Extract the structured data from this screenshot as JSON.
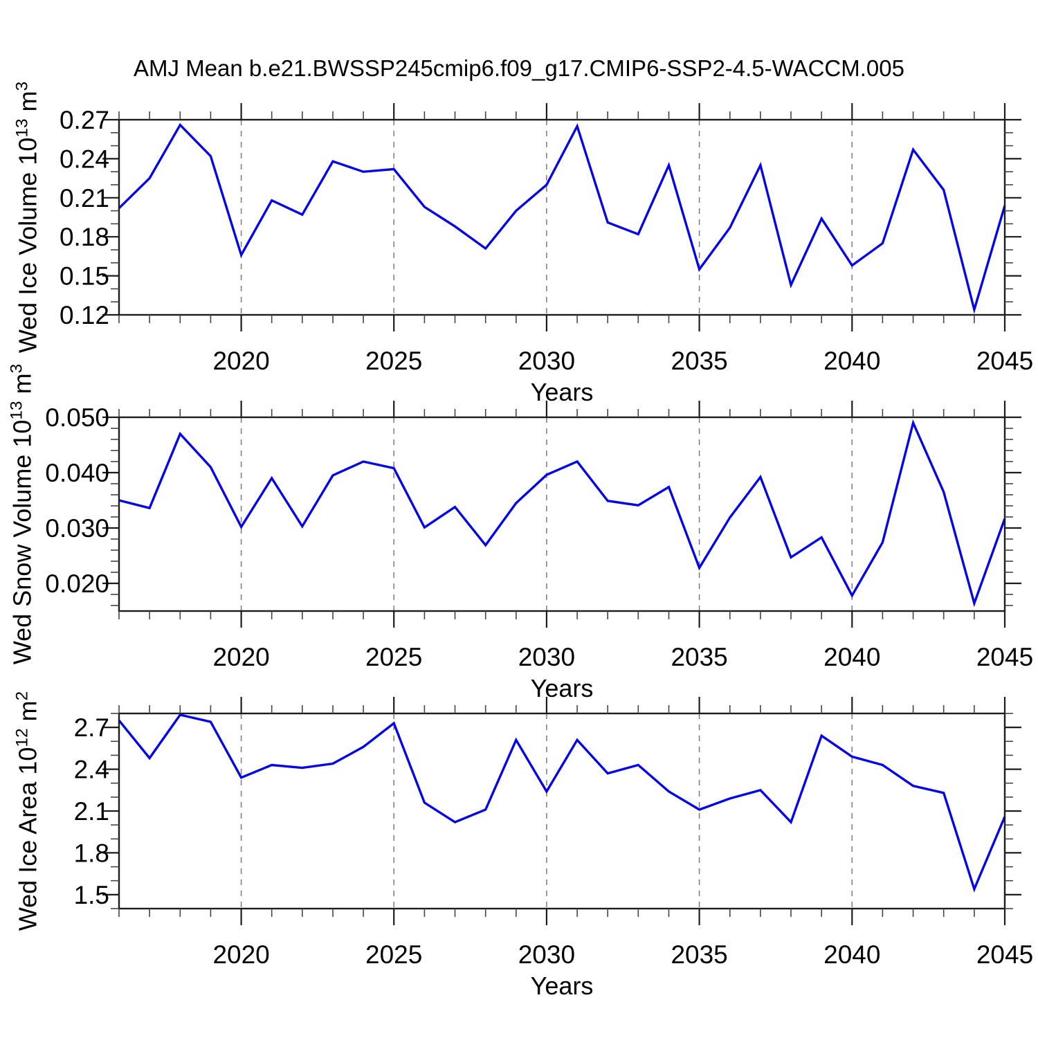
{
  "figure": {
    "title": "AMJ Mean b.e21.BWSSP245cmip6.f09_g17.CMIP6-SSP2-4.5-WACCM.005",
    "background": "#ffffff",
    "line_color": "#0404ec",
    "grid_color": "#7a7a7a",
    "axis_color": "#1c1c1c",
    "minor_tick_color": "#444444"
  },
  "chart_data": [
    {
      "type": "line",
      "series_name": "Wed Ice Volume",
      "ylabel": "Wed Ice Volume 10^13 m^3",
      "ylabel_parts": {
        "base": "Wed Ice Volume 10",
        "exp": "13",
        "unit": " m",
        "unit_exp": "3"
      },
      "xlabel": "Years",
      "x": [
        2016,
        2017,
        2018,
        2019,
        2020,
        2021,
        2022,
        2023,
        2024,
        2025,
        2026,
        2027,
        2028,
        2029,
        2030,
        2031,
        2032,
        2033,
        2034,
        2035,
        2036,
        2037,
        2038,
        2039,
        2040,
        2041,
        2042,
        2043,
        2044,
        2045
      ],
      "values": [
        0.202,
        0.225,
        0.266,
        0.242,
        0.166,
        0.208,
        0.197,
        0.238,
        0.23,
        0.232,
        0.203,
        0.188,
        0.171,
        0.2,
        0.22,
        0.265,
        0.191,
        0.182,
        0.235,
        0.155,
        0.187,
        0.235,
        0.143,
        0.194,
        0.158,
        0.175,
        0.247,
        0.216,
        0.124,
        0.204
      ],
      "xlim": [
        2016,
        2045
      ],
      "ylim": [
        0.12,
        0.27
      ],
      "xticks": {
        "major_values": [
          2020,
          2025,
          2030,
          2035,
          2040,
          2045
        ],
        "major_labels": [
          "2020",
          "2025",
          "2030",
          "2035",
          "2040",
          "2045"
        ],
        "minor_step": 1
      },
      "yticks": {
        "major_values": [
          0.27,
          0.24,
          0.21,
          0.18,
          0.15,
          0.12
        ],
        "major_labels": [
          "0.27",
          "0.24",
          "0.21",
          "0.18",
          "0.15",
          "0.12"
        ],
        "minor_step": 0.01
      },
      "gridlines_x": [
        2020,
        2025,
        2030,
        2035,
        2040
      ],
      "grid_style": "vertical-dashed",
      "legend": "none"
    },
    {
      "type": "line",
      "series_name": "Wed Snow Volume",
      "ylabel": "Wed Snow Volume 10^13 m^3",
      "ylabel_parts": {
        "base": "Wed Snow Volume 10",
        "exp": "13",
        "unit": " m",
        "unit_exp": "3"
      },
      "xlabel": "Years",
      "x": [
        2016,
        2017,
        2018,
        2019,
        2020,
        2021,
        2022,
        2023,
        2024,
        2025,
        2026,
        2027,
        2028,
        2029,
        2030,
        2031,
        2032,
        2033,
        2034,
        2035,
        2036,
        2037,
        2038,
        2039,
        2040,
        2041,
        2042,
        2043,
        2044,
        2045
      ],
      "values": [
        0.035,
        0.0336,
        0.047,
        0.041,
        0.0302,
        0.039,
        0.0303,
        0.0395,
        0.042,
        0.0408,
        0.0301,
        0.0338,
        0.0269,
        0.0345,
        0.0396,
        0.042,
        0.0349,
        0.0341,
        0.0374,
        0.0228,
        0.0319,
        0.0392,
        0.0247,
        0.0283,
        0.0178,
        0.0274,
        0.049,
        0.0365,
        0.0164,
        0.0317
      ],
      "xlim": [
        2016,
        2045
      ],
      "ylim": [
        0.015,
        0.05
      ],
      "xticks": {
        "major_values": [
          2020,
          2025,
          2030,
          2035,
          2040,
          2045
        ],
        "major_labels": [
          "2020",
          "2025",
          "2030",
          "2035",
          "2040",
          "2045"
        ],
        "minor_step": 1
      },
      "yticks": {
        "major_values": [
          0.05,
          0.04,
          0.03,
          0.02
        ],
        "major_labels": [
          "0.050",
          "0.040",
          "0.030",
          "0.020"
        ],
        "minor_step": 0.002
      },
      "gridlines_x": [
        2020,
        2025,
        2030,
        2035,
        2040
      ],
      "grid_style": "vertical-dashed",
      "legend": "none"
    },
    {
      "type": "line",
      "series_name": "Wed Ice Area",
      "ylabel": "Wed Ice Area 10^12 m^2",
      "ylabel_parts": {
        "base": "Wed Ice Area 10",
        "exp": "12",
        "unit": " m",
        "unit_exp": "2"
      },
      "xlabel": "Years",
      "x": [
        2016,
        2017,
        2018,
        2019,
        2020,
        2021,
        2022,
        2023,
        2024,
        2025,
        2026,
        2027,
        2028,
        2029,
        2030,
        2031,
        2032,
        2033,
        2034,
        2035,
        2036,
        2037,
        2038,
        2039,
        2040,
        2041,
        2042,
        2043,
        2044,
        2045
      ],
      "values": [
        2.75,
        2.48,
        2.79,
        2.74,
        2.34,
        2.43,
        2.41,
        2.44,
        2.56,
        2.73,
        2.16,
        2.02,
        2.11,
        2.61,
        2.24,
        2.61,
        2.37,
        2.43,
        2.24,
        2.11,
        2.19,
        2.25,
        2.02,
        2.64,
        2.49,
        2.43,
        2.28,
        2.23,
        1.54,
        2.06
      ],
      "xlim": [
        2016,
        2045
      ],
      "ylim": [
        1.4,
        2.8
      ],
      "xticks": {
        "major_values": [
          2020,
          2025,
          2030,
          2035,
          2040,
          2045
        ],
        "major_labels": [
          "2020",
          "2025",
          "2030",
          "2035",
          "2040",
          "2045"
        ],
        "minor_step": 1
      },
      "yticks": {
        "major_values": [
          2.7,
          2.4,
          2.1,
          1.8,
          1.5
        ],
        "major_labels": [
          "2.7",
          "2.4",
          "2.1",
          "1.8",
          "1.5"
        ],
        "minor_step": 0.1
      },
      "gridlines_x": [
        2020,
        2025,
        2030,
        2035,
        2040
      ],
      "grid_style": "vertical-dashed",
      "legend": "none"
    }
  ]
}
